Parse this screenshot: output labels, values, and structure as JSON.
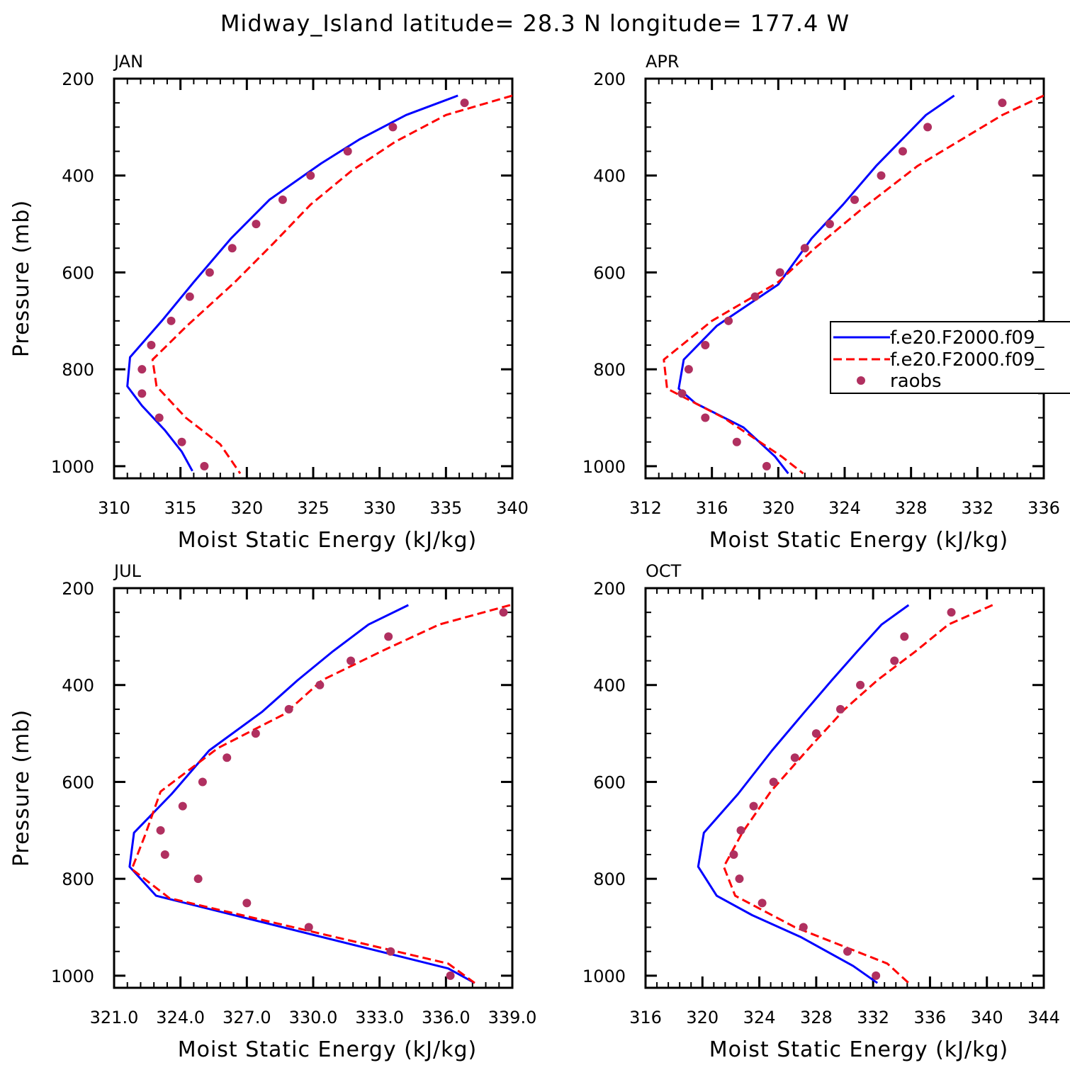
{
  "figure": {
    "title": "Midway_Island  latitude= 28.3 N longitude= 177.4 W"
  },
  "colors": {
    "model_1": "#0000ff",
    "model_2": "#ff0000",
    "raobs": "#b03060"
  },
  "legend": {
    "placement": "APR panel, right edge (clipped)",
    "entries": [
      {
        "label": "f.e20.F2000.f09_",
        "style": "solid",
        "color": "#0000ff"
      },
      {
        "label": "f.e20.F2000.f09_",
        "style": "dashed",
        "color": "#ff0000"
      },
      {
        "label": "raobs",
        "style": "marker",
        "color": "#b03060"
      }
    ]
  },
  "chart_data": [
    {
      "type": "line",
      "month": "JAN",
      "xlabel": "Moist Static Energy (kJ/kg)",
      "ylabel": "Pressure (mb)",
      "xlim": [
        310,
        340
      ],
      "ylim": [
        1025,
        200
      ],
      "xticks": [
        310,
        315,
        320,
        325,
        330,
        335,
        340
      ],
      "xtick_labels": [
        "310",
        "315",
        "320",
        "325",
        "330",
        "335",
        "340"
      ],
      "yticks": [
        200,
        400,
        600,
        800,
        1000
      ],
      "ytick_labels": [
        "200",
        "400",
        "600",
        "800",
        "1000"
      ],
      "series": [
        {
          "style": "solid",
          "p": [
            235,
            275,
            325,
            375,
            450,
            530,
            620,
            700,
            775,
            835,
            875,
            925,
            970,
            1010
          ],
          "x": [
            335.9,
            332.0,
            328.5,
            325.6,
            321.7,
            318.8,
            316.0,
            313.6,
            311.2,
            311.0,
            312.1,
            313.8,
            315.1,
            315.9
          ]
        },
        {
          "style": "dashed",
          "p": [
            235,
            275,
            330,
            390,
            460,
            540,
            620,
            710,
            780,
            835,
            900,
            955,
            1015
          ],
          "x": [
            340.0,
            335.0,
            331.2,
            327.9,
            324.8,
            322.0,
            319.1,
            315.5,
            312.9,
            313.2,
            315.4,
            318.0,
            319.5
          ]
        },
        {
          "style": "marker",
          "p": [
            250,
            300,
            350,
            400,
            450,
            500,
            550,
            600,
            650,
            700,
            750,
            800,
            850,
            900,
            950,
            1000
          ],
          "x": [
            336.4,
            331.0,
            327.6,
            324.8,
            322.7,
            320.7,
            318.9,
            317.2,
            315.7,
            314.3,
            312.8,
            312.1,
            312.1,
            313.4,
            315.1,
            316.8
          ]
        }
      ]
    },
    {
      "type": "line",
      "month": "APR",
      "xlabel": "Moist Static Energy (kJ/kg)",
      "ylabel": "",
      "xlim": [
        312,
        336
      ],
      "ylim": [
        1025,
        200
      ],
      "xticks": [
        312,
        316,
        320,
        324,
        328,
        332,
        336
      ],
      "xtick_labels": [
        "312",
        "316",
        "320",
        "324",
        "328",
        "332",
        "336"
      ],
      "yticks": [
        200,
        400,
        600,
        800,
        1000
      ],
      "ytick_labels": [
        "200",
        "400",
        "600",
        "800",
        "1000"
      ],
      "series": [
        {
          "style": "solid",
          "p": [
            235,
            275,
            380,
            460,
            530,
            625,
            710,
            780,
            840,
            870,
            920,
            980,
            1015
          ],
          "x": [
            330.6,
            328.9,
            325.9,
            323.9,
            322.0,
            320.0,
            316.3,
            314.3,
            314.0,
            315.0,
            317.9,
            319.8,
            320.6
          ]
        },
        {
          "style": "dashed",
          "p": [
            235,
            275,
            380,
            470,
            550,
            620,
            700,
            780,
            840,
            900,
            980,
            1015
          ],
          "x": [
            336.0,
            333.5,
            328.4,
            325.0,
            322.2,
            320.0,
            316.0,
            313.1,
            313.3,
            316.7,
            320.2,
            321.5
          ]
        },
        {
          "style": "marker",
          "p": [
            250,
            300,
            350,
            400,
            450,
            500,
            550,
            600,
            650,
            700,
            750,
            800,
            850,
            900,
            950,
            1000
          ],
          "x": [
            333.5,
            329.0,
            327.5,
            326.2,
            324.6,
            323.1,
            321.6,
            320.1,
            318.6,
            317.0,
            315.6,
            314.6,
            314.2,
            315.6,
            317.5,
            319.3
          ]
        }
      ]
    },
    {
      "type": "line",
      "month": "JUL",
      "xlabel": "Moist Static Energy (kJ/kg)",
      "ylabel": "Pressure (mb)",
      "xlim": [
        321,
        339
      ],
      "ylim": [
        1025,
        200
      ],
      "xticks": [
        321,
        324,
        327,
        330,
        333,
        336,
        339
      ],
      "xtick_labels": [
        "321.0",
        "324.0",
        "327.0",
        "330.0",
        "333.0",
        "336.0",
        "339.0"
      ],
      "yticks": [
        200,
        400,
        600,
        800,
        1000
      ],
      "ytick_labels": [
        "200",
        "400",
        "600",
        "800",
        "1000"
      ],
      "series": [
        {
          "style": "solid",
          "p": [
            235,
            275,
            330,
            390,
            455,
            535,
            625,
            705,
            775,
            835,
            960,
            985,
            1015
          ],
          "x": [
            334.3,
            332.5,
            330.9,
            329.3,
            327.7,
            325.3,
            323.6,
            321.9,
            321.7,
            322.9,
            333.9,
            336.1,
            337.3
          ]
        },
        {
          "style": "dashed",
          "p": [
            235,
            275,
            330,
            390,
            460,
            530,
            620,
            710,
            780,
            840,
            975,
            1015
          ],
          "x": [
            338.9,
            335.7,
            333.1,
            330.4,
            328.7,
            325.7,
            323.1,
            322.4,
            321.8,
            323.5,
            336.1,
            337.3
          ]
        },
        {
          "style": "marker",
          "p": [
            250,
            300,
            350,
            400,
            450,
            500,
            550,
            600,
            650,
            700,
            750,
            800,
            850,
            900,
            950,
            1000
          ],
          "x": [
            338.6,
            333.4,
            331.7,
            330.3,
            328.9,
            327.4,
            326.1,
            325.0,
            324.1,
            323.1,
            323.3,
            324.8,
            327.0,
            329.8,
            333.5,
            336.2
          ]
        }
      ]
    },
    {
      "type": "line",
      "month": "OCT",
      "xlabel": "Moist Static Energy (kJ/kg)",
      "ylabel": "",
      "xlim": [
        316,
        344
      ],
      "ylim": [
        1025,
        200
      ],
      "xticks": [
        316,
        320,
        324,
        328,
        332,
        336,
        340,
        344
      ],
      "xtick_labels": [
        "316",
        "320",
        "324",
        "328",
        "332",
        "336",
        "340",
        "344"
      ],
      "yticks": [
        200,
        400,
        600,
        800,
        1000
      ],
      "ytick_labels": [
        "200",
        "400",
        "600",
        "800",
        "1000"
      ],
      "series": [
        {
          "style": "solid",
          "p": [
            235,
            275,
            330,
            390,
            455,
            535,
            625,
            705,
            775,
            835,
            875,
            920,
            980,
            1015
          ],
          "x": [
            334.5,
            332.6,
            330.9,
            329.1,
            327.2,
            324.9,
            322.5,
            320.1,
            319.7,
            321.0,
            323.5,
            326.9,
            330.6,
            332.3
          ]
        },
        {
          "style": "dashed",
          "p": [
            235,
            275,
            330,
            390,
            450,
            530,
            620,
            705,
            775,
            835,
            900,
            975,
            1015
          ],
          "x": [
            340.4,
            337.3,
            335.0,
            332.3,
            330.0,
            327.5,
            324.8,
            322.8,
            321.5,
            322.3,
            326.5,
            333.0,
            334.5
          ]
        },
        {
          "style": "marker",
          "p": [
            250,
            300,
            350,
            400,
            450,
            500,
            550,
            600,
            650,
            700,
            750,
            800,
            850,
            900,
            950,
            1000
          ],
          "x": [
            337.5,
            334.2,
            333.5,
            331.1,
            329.7,
            328.0,
            326.5,
            325.0,
            323.6,
            322.7,
            322.2,
            322.6,
            324.2,
            327.1,
            330.2,
            332.2
          ]
        }
      ]
    }
  ]
}
